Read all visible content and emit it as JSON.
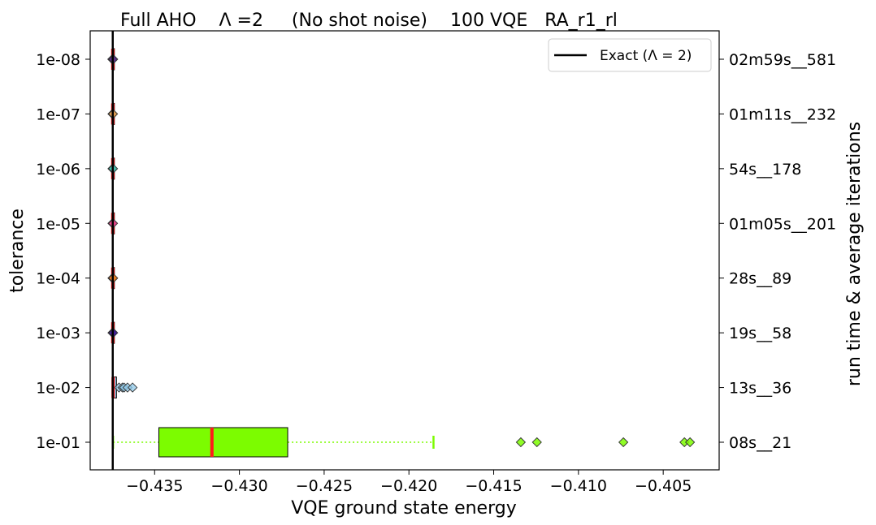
{
  "chart_data": {
    "type": "boxplot",
    "title": "Full AHO    Λ =2     (No shot noise)    100 VQE   RA_r1_rl",
    "xlabel": "VQE ground state energy",
    "ylabel": "tolerance",
    "ylabel_right": "run time & average iterations",
    "xlim": [
      -0.4388,
      -0.4017
    ],
    "x_ticks": [
      -0.435,
      -0.43,
      -0.425,
      -0.42,
      -0.415,
      -0.41,
      -0.405
    ],
    "x_tick_labels": [
      "−0.435",
      "−0.430",
      "−0.425",
      "−0.420",
      "−0.415",
      "−0.410",
      "−0.405"
    ],
    "exact_line": {
      "value": -0.43747,
      "label": "Exact (Λ = 2)",
      "color": "#000000"
    },
    "legend_position": "top-right",
    "grid": false,
    "categories": [
      "1e-08",
      "1e-07",
      "1e-06",
      "1e-05",
      "1e-04",
      "1e-03",
      "1e-02",
      "1e-01"
    ],
    "right_labels": [
      "02m59s__581",
      "01m11s__232",
      "54s__178",
      "01m05s__201",
      "28s__89",
      "19s__58",
      "13s__36",
      "08s__21"
    ],
    "boxes": [
      {
        "q1": -0.43747,
        "median": -0.43747,
        "q3": -0.43747,
        "whisker_low": -0.43747,
        "whisker_high": -0.43747,
        "fliers": [
          -0.4375,
          -0.43744
        ],
        "color": "#5a2d8c"
      },
      {
        "q1": -0.43747,
        "median": -0.43747,
        "q3": -0.43747,
        "whisker_low": -0.43747,
        "whisker_high": -0.43747,
        "fliers": [
          -0.43749,
          -0.43745
        ],
        "color": "#e0a050"
      },
      {
        "q1": -0.43747,
        "median": -0.43747,
        "q3": -0.43747,
        "whisker_low": -0.43747,
        "whisker_high": -0.43747,
        "fliers": [
          -0.43749,
          -0.43745
        ],
        "color": "#40c0b0"
      },
      {
        "q1": -0.43747,
        "median": -0.43747,
        "q3": -0.43747,
        "whisker_low": -0.43747,
        "whisker_high": -0.43747,
        "fliers": [
          -0.43749,
          -0.43745
        ],
        "color": "#e8408a"
      },
      {
        "q1": -0.43747,
        "median": -0.43747,
        "q3": -0.43747,
        "whisker_low": -0.43747,
        "whisker_high": -0.43747,
        "fliers": [
          -0.43749,
          -0.43744
        ],
        "color": "#f08020"
      },
      {
        "q1": -0.43747,
        "median": -0.43747,
        "q3": -0.43747,
        "whisker_low": -0.43747,
        "whisker_high": -0.43747,
        "fliers": [
          -0.43749,
          -0.43744
        ],
        "color": "#3a1a9a"
      },
      {
        "q1": -0.43745,
        "median": -0.43745,
        "q3": -0.43725,
        "whisker_low": -0.43747,
        "whisker_high": -0.43725,
        "fliers": [
          -0.4371,
          -0.4369,
          -0.4368,
          -0.4366,
          -0.4363
        ],
        "color": "#8fc8e8"
      },
      {
        "q1": -0.43475,
        "median": -0.43162,
        "q3": -0.42715,
        "whisker_low": -0.43745,
        "whisker_high": -0.41855,
        "fliers": [
          -0.4134,
          -0.41245,
          -0.40735,
          -0.40375,
          -0.40342
        ],
        "color": "#7cfc00"
      }
    ],
    "median_color": "#ff1a1a"
  }
}
